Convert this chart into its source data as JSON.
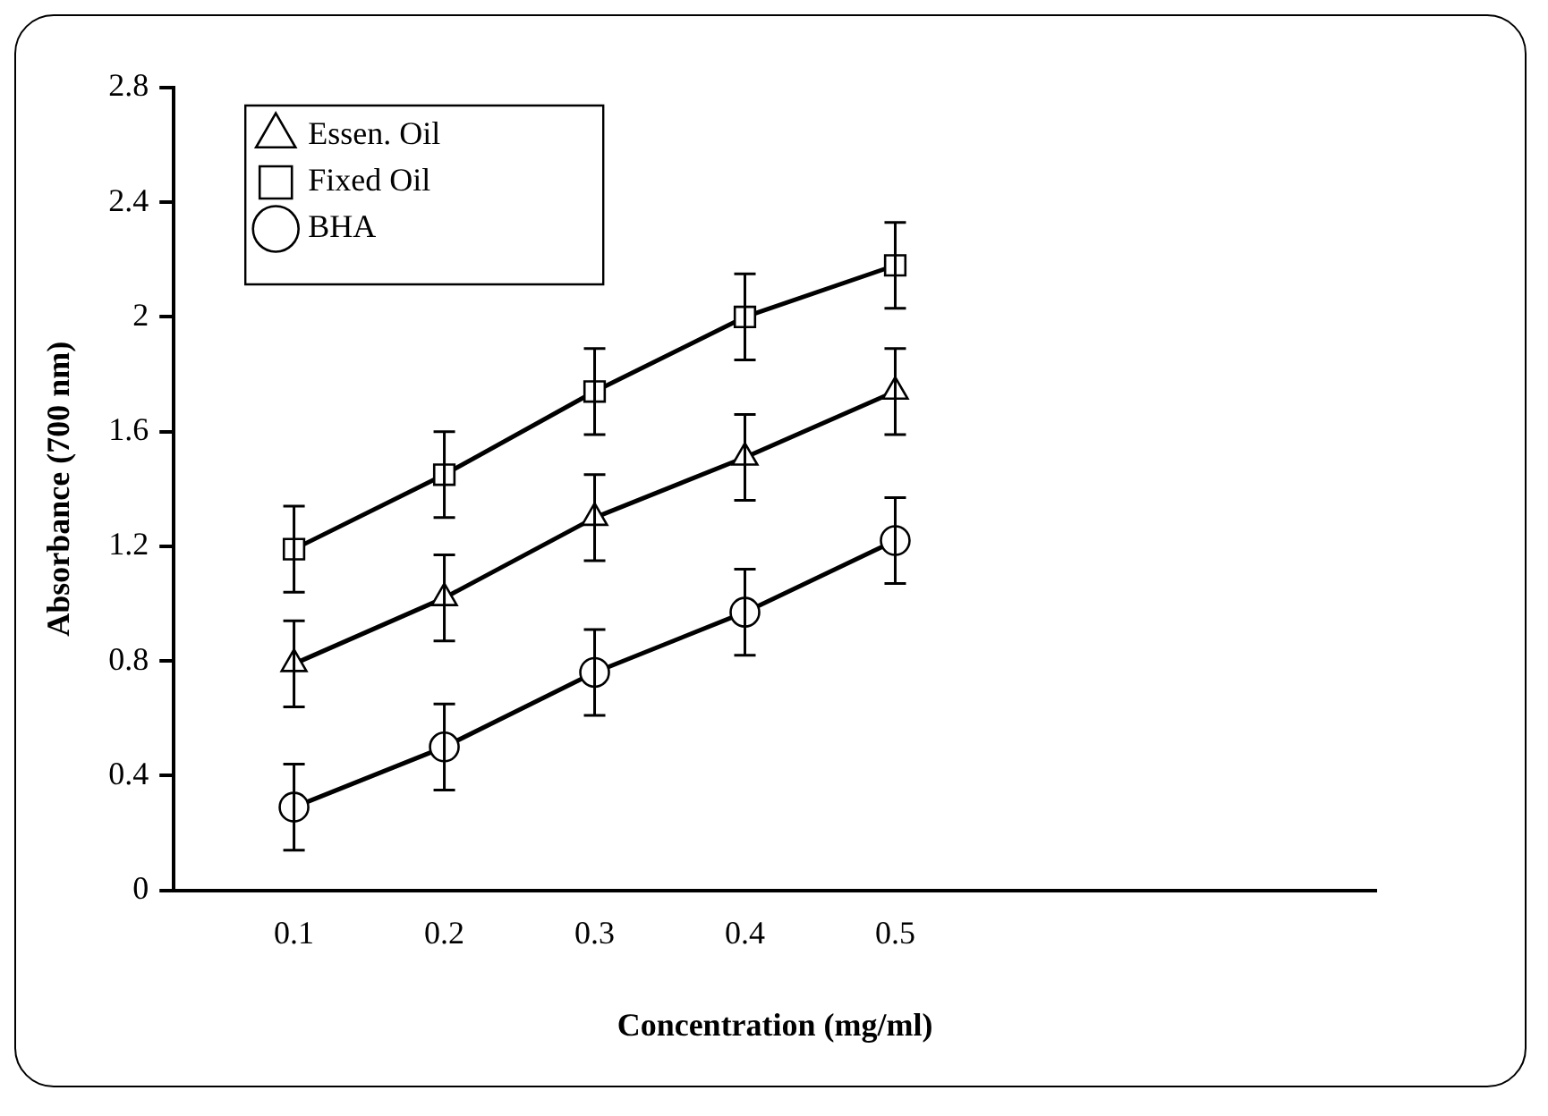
{
  "chart_data": {
    "type": "line",
    "xlabel": "Concentration (mg/ml)",
    "ylabel": "Absorbance (700 nm)",
    "x": [
      0.1,
      0.2,
      0.3,
      0.4,
      0.5
    ],
    "series": [
      {
        "name": "Essen. Oil",
        "color": "#000000",
        "marker": "triangle",
        "values": [
          0.79,
          1.02,
          1.3,
          1.51,
          1.74
        ],
        "errors": [
          0.15,
          0.15,
          0.15,
          0.15,
          0.15
        ]
      },
      {
        "name": "Fixed Oil",
        "color": "#000000",
        "marker": "square",
        "values": [
          1.19,
          1.45,
          1.74,
          2.0,
          2.18
        ],
        "errors": [
          0.15,
          0.15,
          0.15,
          0.15,
          0.15
        ]
      },
      {
        "name": "BHA",
        "color": "#000000",
        "marker": "circle",
        "values": [
          0.29,
          0.5,
          0.76,
          0.97,
          1.22
        ],
        "errors": [
          0.15,
          0.15,
          0.15,
          0.15,
          0.15
        ]
      }
    ],
    "xlim": [
      0.02,
      0.82
    ],
    "xticks": [
      0.1,
      0.2,
      0.3,
      0.4,
      0.5
    ],
    "ylim": [
      0,
      2.8
    ],
    "yticks": [
      0,
      0.4,
      0.8,
      1.2,
      1.6,
      2,
      2.4,
      2.8
    ],
    "grid": false,
    "legend": "top left",
    "line_style": "solid"
  }
}
